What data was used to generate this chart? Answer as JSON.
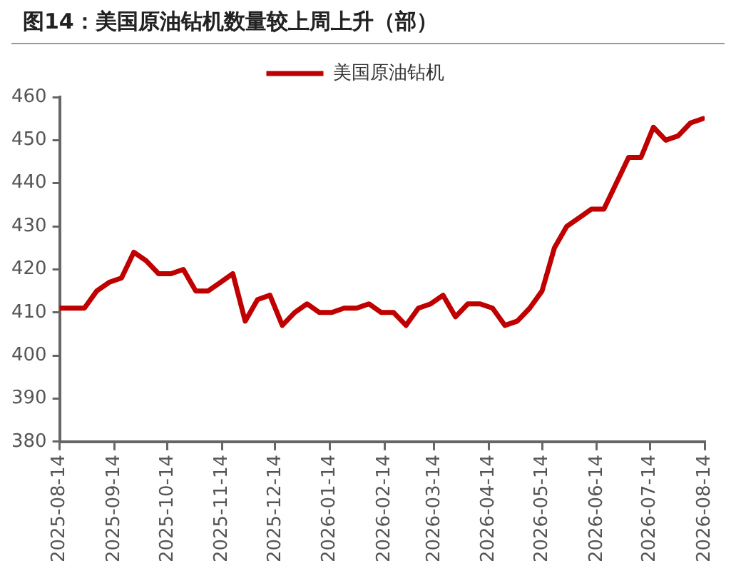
{
  "chart_data": {
    "type": "line",
    "title": "图14：美国原油钻机数量较上周上升（部）",
    "x": [
      "2025-08-14",
      "2025-08-21",
      "2025-08-28",
      "2025-09-04",
      "2025-09-11",
      "2025-09-18",
      "2025-09-25",
      "2025-10-02",
      "2025-10-09",
      "2025-10-16",
      "2025-10-23",
      "2025-10-30",
      "2025-11-06",
      "2025-11-13",
      "2025-11-20",
      "2025-11-27",
      "2025-12-04",
      "2025-12-11",
      "2025-12-18",
      "2025-12-25",
      "2026-01-01",
      "2026-01-08",
      "2026-01-15",
      "2026-01-22",
      "2026-01-29",
      "2026-02-05",
      "2026-02-12",
      "2026-02-19",
      "2026-02-26",
      "2026-03-05",
      "2026-03-12",
      "2026-03-19",
      "2026-03-26",
      "2026-04-02",
      "2026-04-09",
      "2026-04-16",
      "2026-04-23",
      "2026-04-30",
      "2026-05-07",
      "2026-05-14",
      "2026-05-21",
      "2026-05-28",
      "2026-06-04",
      "2026-06-11",
      "2026-06-18",
      "2026-06-25",
      "2026-07-02",
      "2026-07-09",
      "2026-07-16",
      "2026-07-23",
      "2026-07-30",
      "2026-08-06",
      "2026-08-13"
    ],
    "series": [
      {
        "name": "美国原油钻机",
        "color": "#c00000",
        "values": [
          411,
          411,
          411,
          415,
          417,
          418,
          424,
          422,
          419,
          419,
          420,
          415,
          415,
          417,
          419,
          408,
          413,
          414,
          407,
          410,
          412,
          410,
          410,
          411,
          411,
          412,
          410,
          410,
          407,
          411,
          412,
          414,
          409,
          412,
          412,
          411,
          407,
          408,
          411,
          415,
          425,
          430,
          432,
          434,
          434,
          440,
          446,
          446,
          453,
          450,
          451,
          454,
          455
        ]
      }
    ],
    "xlim": [
      "2025-08-14",
      "2026-08-14"
    ],
    "xticks": [
      "2025-08-14",
      "2025-09-14",
      "2025-10-14",
      "2025-11-14",
      "2025-12-14",
      "2026-01-14",
      "2026-02-14",
      "2026-03-14",
      "2026-04-14",
      "2026-05-14",
      "2026-06-14",
      "2026-07-14",
      "2026-08-14"
    ],
    "ylim": [
      380,
      460
    ],
    "yticks": [
      380,
      390,
      400,
      410,
      420,
      430,
      440,
      450,
      460
    ],
    "legend": "top",
    "marker": "none",
    "line_style": "solid"
  }
}
